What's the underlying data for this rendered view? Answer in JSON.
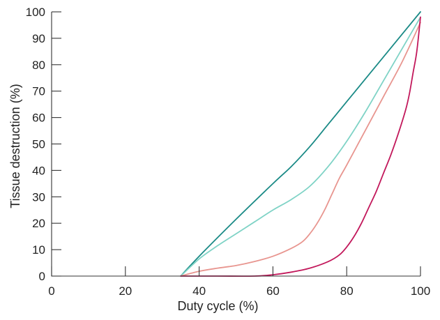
{
  "chart_data": {
    "type": "line",
    "xlabel": "Duty cycle (%)",
    "ylabel": "Tissue destruction (%)",
    "xlim": [
      0,
      100
    ],
    "ylim": [
      0,
      100
    ],
    "xticks": [
      0,
      20,
      40,
      60,
      80,
      100
    ],
    "yticks": [
      0,
      10,
      20,
      30,
      40,
      50,
      60,
      70,
      80,
      90,
      100
    ],
    "grid": false,
    "legend": "none",
    "series": [
      {
        "color": "#1a8a86",
        "points": [
          [
            35,
            0
          ],
          [
            40,
            7.5
          ],
          [
            50,
            21.5
          ],
          [
            60,
            35
          ],
          [
            65,
            41.5
          ],
          [
            70,
            49
          ],
          [
            75,
            57.5
          ],
          [
            80,
            66
          ],
          [
            90,
            83
          ],
          [
            100,
            100
          ]
        ]
      },
      {
        "color": "#7fd3c6",
        "points": [
          [
            35,
            0
          ],
          [
            40,
            6.5
          ],
          [
            45,
            11.5
          ],
          [
            50,
            16
          ],
          [
            55,
            20.5
          ],
          [
            60,
            25
          ],
          [
            65,
            29
          ],
          [
            70,
            34
          ],
          [
            75,
            41.5
          ],
          [
            80,
            51
          ],
          [
            85,
            62
          ],
          [
            90,
            74
          ],
          [
            95,
            86
          ],
          [
            100,
            98
          ]
        ]
      },
      {
        "color": "#e8958f",
        "points": [
          [
            35,
            0
          ],
          [
            40,
            1.8
          ],
          [
            45,
            3
          ],
          [
            50,
            4
          ],
          [
            55,
            5.5
          ],
          [
            60,
            7.5
          ],
          [
            65,
            10.5
          ],
          [
            68,
            13
          ],
          [
            70,
            16
          ],
          [
            72,
            20
          ],
          [
            74,
            25
          ],
          [
            76,
            31
          ],
          [
            78,
            37
          ],
          [
            80,
            42
          ],
          [
            85,
            55
          ],
          [
            90,
            68
          ],
          [
            95,
            81
          ],
          [
            100,
            96
          ]
        ]
      },
      {
        "color": "#c2185b",
        "points": [
          [
            35,
            0
          ],
          [
            45,
            0
          ],
          [
            55,
            0
          ],
          [
            60,
            0.5
          ],
          [
            65,
            1.5
          ],
          [
            70,
            3
          ],
          [
            75,
            5.5
          ],
          [
            78,
            8
          ],
          [
            80,
            11
          ],
          [
            82,
            15
          ],
          [
            84,
            20
          ],
          [
            86,
            26
          ],
          [
            88,
            32
          ],
          [
            90,
            39
          ],
          [
            92,
            46
          ],
          [
            94,
            54
          ],
          [
            96,
            63
          ],
          [
            97,
            69
          ],
          [
            98,
            77
          ],
          [
            99,
            85
          ],
          [
            100,
            98
          ]
        ]
      }
    ]
  }
}
